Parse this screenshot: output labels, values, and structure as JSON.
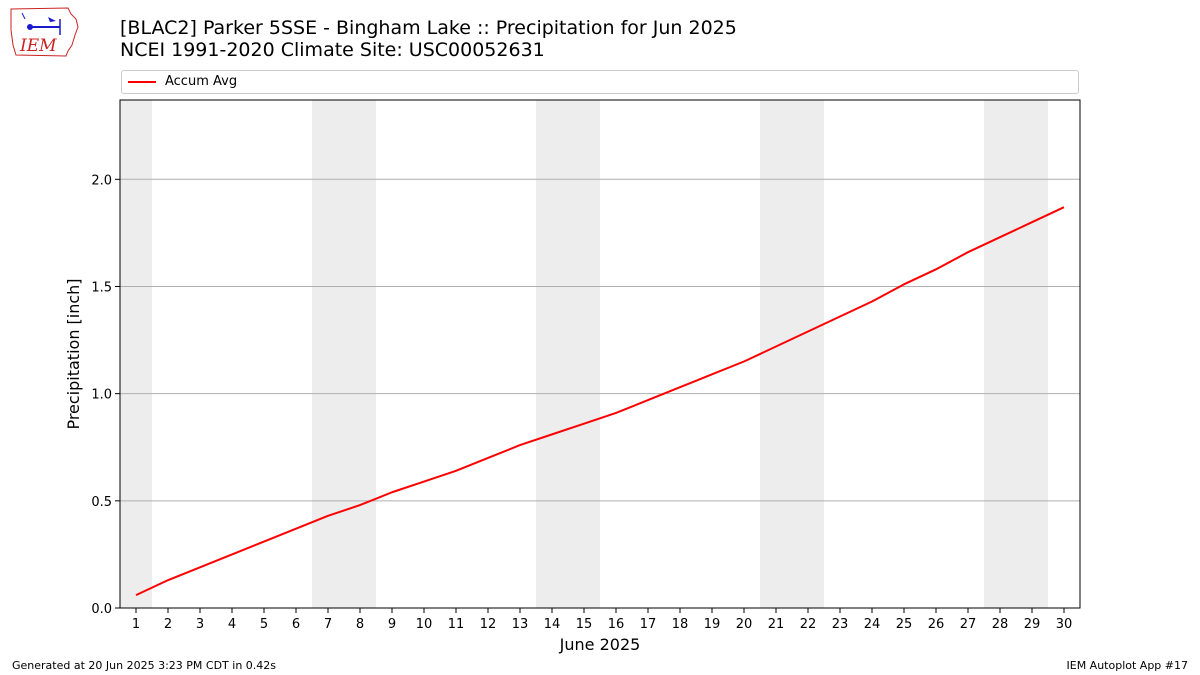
{
  "logo": {
    "text": "IEM"
  },
  "title_line1": "[BLAC2] Parker 5SSE - Bingham Lake :: Precipitation for Jun 2025",
  "title_line2": "NCEI 1991-2020 Climate Site: USC00052631",
  "footer_left": "Generated at 20 Jun 2025 3:23 PM CDT in 0.42s",
  "footer_right": "IEM Autoplot App #17",
  "colors": {
    "series": "#ff0000",
    "weekend_band": "#ededed",
    "grid": "#b0b0b0",
    "logo_red": "#cc2222",
    "logo_blue": "#1a1acc"
  },
  "chart_data": {
    "type": "line",
    "xlabel": "June 2025",
    "ylabel": "Precipitation [inch]",
    "xlim": [
      0.5,
      30.5
    ],
    "ylim": [
      0,
      2.37
    ],
    "yticks": [
      0.0,
      0.5,
      1.0,
      1.5,
      2.0
    ],
    "ytick_labels": [
      "0.0",
      "0.5",
      "1.0",
      "1.5",
      "2.0"
    ],
    "grid": "horizontal",
    "legend": "top",
    "shaded_days": [
      [
        0.5,
        1.5
      ],
      [
        6.5,
        8.5
      ],
      [
        13.5,
        15.5
      ],
      [
        20.5,
        22.5
      ],
      [
        27.5,
        29.5
      ]
    ],
    "x": [
      1,
      2,
      3,
      4,
      5,
      6,
      7,
      8,
      9,
      10,
      11,
      12,
      13,
      14,
      15,
      16,
      17,
      18,
      19,
      20,
      21,
      22,
      23,
      24,
      25,
      26,
      27,
      28,
      29,
      30
    ],
    "series": [
      {
        "name": "Accum Avg",
        "color": "#ff0000",
        "values": [
          0.06,
          0.13,
          0.19,
          0.25,
          0.31,
          0.37,
          0.43,
          0.48,
          0.54,
          0.59,
          0.64,
          0.7,
          0.76,
          0.81,
          0.86,
          0.91,
          0.97,
          1.03,
          1.09,
          1.15,
          1.22,
          1.29,
          1.36,
          1.43,
          1.51,
          1.58,
          1.66,
          1.73,
          1.8,
          1.87
        ]
      }
    ]
  }
}
